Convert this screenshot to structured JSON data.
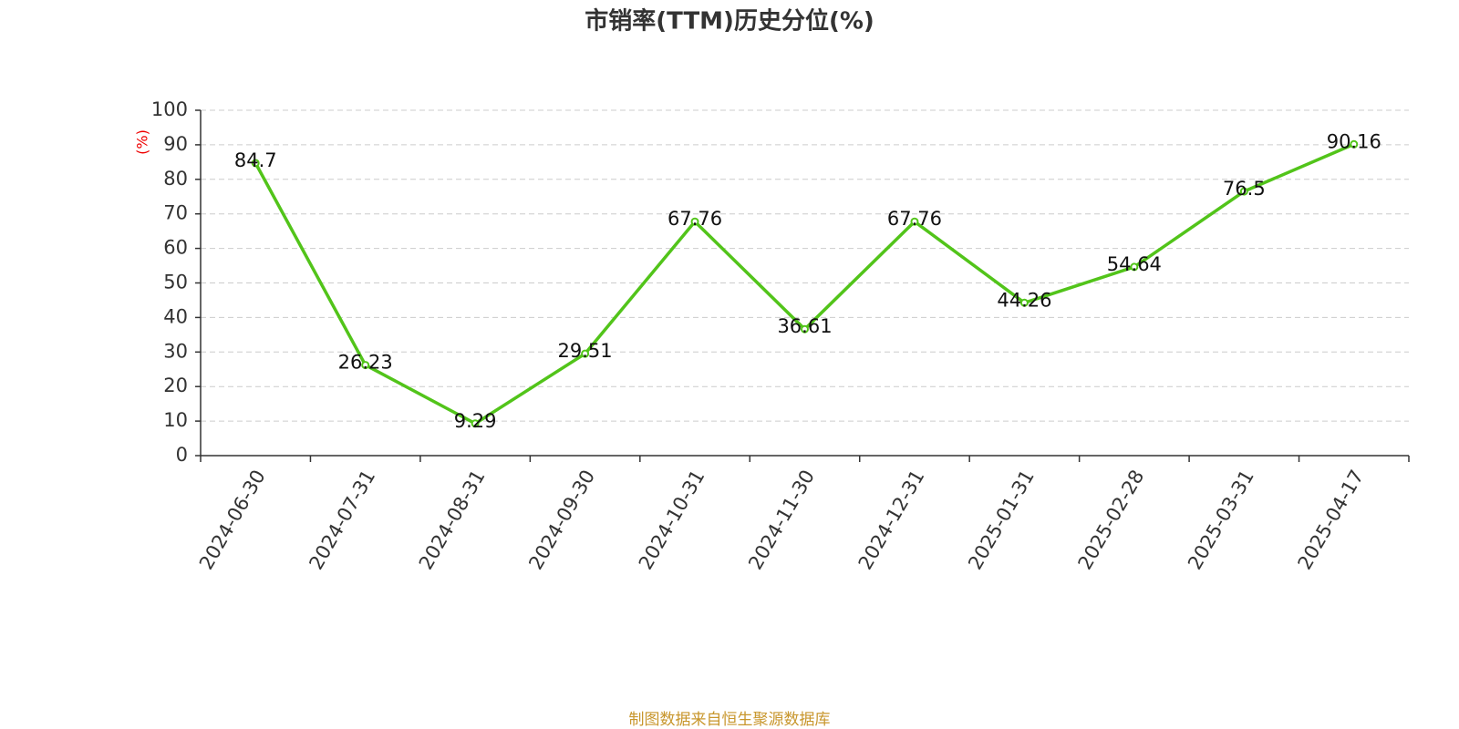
{
  "chart_data": {
    "type": "line",
    "title": "市销率(TTM)历史分位(%)",
    "y_label": "(%)",
    "categories": [
      "2024-06-30",
      "2024-07-31",
      "2024-08-31",
      "2024-09-30",
      "2024-10-31",
      "2024-11-30",
      "2024-12-31",
      "2025-01-31",
      "2025-02-28",
      "2025-03-31",
      "2025-04-17"
    ],
    "values": [
      84.7,
      26.23,
      9.29,
      29.51,
      67.76,
      36.61,
      67.76,
      44.26,
      54.64,
      76.5,
      90.16
    ],
    "color": "#52c41a",
    "ylim": [
      0,
      100
    ],
    "yticks": [
      0,
      10,
      20,
      30,
      40,
      50,
      60,
      70,
      80,
      90,
      100
    ],
    "grid": true,
    "source": "制图数据来自恒生聚源数据库"
  }
}
